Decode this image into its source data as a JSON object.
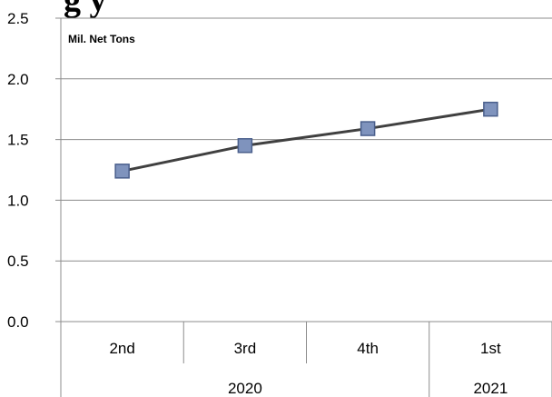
{
  "chart_data": {
    "type": "line",
    "title_partial": "g        y",
    "unit_label": "Mil. Net Tons",
    "categories": [
      "2nd",
      "3rd",
      "4th",
      "1st"
    ],
    "category_groups": [
      {
        "label": "2020",
        "span": [
          0,
          2
        ]
      },
      {
        "label": "2021",
        "span": [
          3,
          3
        ]
      }
    ],
    "series": [
      {
        "values": [
          1.24,
          1.45,
          1.59,
          1.75
        ]
      }
    ],
    "ylim": [
      0,
      2.5
    ],
    "yticks": [
      "0.0",
      "0.5",
      "1.0",
      "1.5",
      "2.0",
      "2.5"
    ],
    "grid": true,
    "colors": {
      "line": "#404040",
      "marker_fill": "#7f93bd",
      "marker_stroke": "#4a5f8c",
      "grid": "#8c8c8c"
    }
  }
}
